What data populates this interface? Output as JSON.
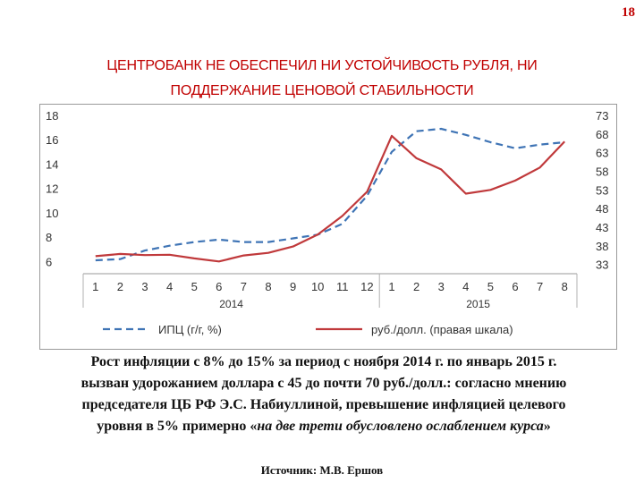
{
  "slide_number": "18",
  "title_line1": "ЦЕНТРОБАНК НЕ ОБЕСПЕЧИЛ НИ УСТОЙЧИВОСТЬ РУБЛЯ, НИ",
  "title_line2": "ПОДДЕРЖАНИЕ ЦЕНОВОЙ СТАБИЛЬНОСТИ",
  "chart_data": {
    "type": "line",
    "categories": [
      "1",
      "2",
      "3",
      "4",
      "5",
      "6",
      "7",
      "8",
      "9",
      "10",
      "11",
      "12",
      "1",
      "2",
      "3",
      "4",
      "5",
      "6",
      "7",
      "8"
    ],
    "year_labels": [
      {
        "label": "2014",
        "index": 5.5
      },
      {
        "label": "2015",
        "index": 15.5
      }
    ],
    "left_axis": {
      "ticks": [
        6,
        8,
        10,
        12,
        14,
        16,
        18
      ],
      "range": [
        5,
        18
      ]
    },
    "right_axis": {
      "ticks": [
        33,
        38,
        43,
        48,
        53,
        58,
        63,
        68,
        73
      ],
      "range": [
        30.5,
        73
      ]
    },
    "series": [
      {
        "name": "ИПЦ (г/г, %)",
        "axis": "left",
        "style": "dashed",
        "color": "#3f74b5",
        "values": [
          6.1,
          6.2,
          6.9,
          7.3,
          7.6,
          7.8,
          7.6,
          7.6,
          7.9,
          8.2,
          9.1,
          11.4,
          15.0,
          16.7,
          16.9,
          16.4,
          15.8,
          15.3,
          15.6,
          15.8
        ]
      },
      {
        "name": "руб./долл. (правая шкала)",
        "axis": "right",
        "style": "solid",
        "color": "#c0393b",
        "values": [
          35.2,
          35.8,
          35.5,
          35.6,
          34.6,
          33.8,
          35.4,
          36.1,
          37.8,
          41.0,
          46.0,
          52.5,
          67.5,
          61.5,
          58.5,
          52.0,
          53.0,
          55.5,
          59.0,
          66.0
        ]
      }
    ]
  },
  "caption": {
    "line1": "Рост инфляции с 8% до 15% за период с ноября 2014 г. по январь 2015 г.",
    "line2": "вызван удорожанием доллара с 45 до почти 70 руб./долл.: согласно мнению",
    "line3": "председателя ЦБ РФ Э.С. Набиуллиной, превышение инфляцией целевого",
    "line4_start": "уровня в 5% примерно «",
    "line4_italic": "на две трети обусловлено ослаблением курса",
    "line4_end": "»"
  },
  "source": "Источник: М.В. Ершов"
}
